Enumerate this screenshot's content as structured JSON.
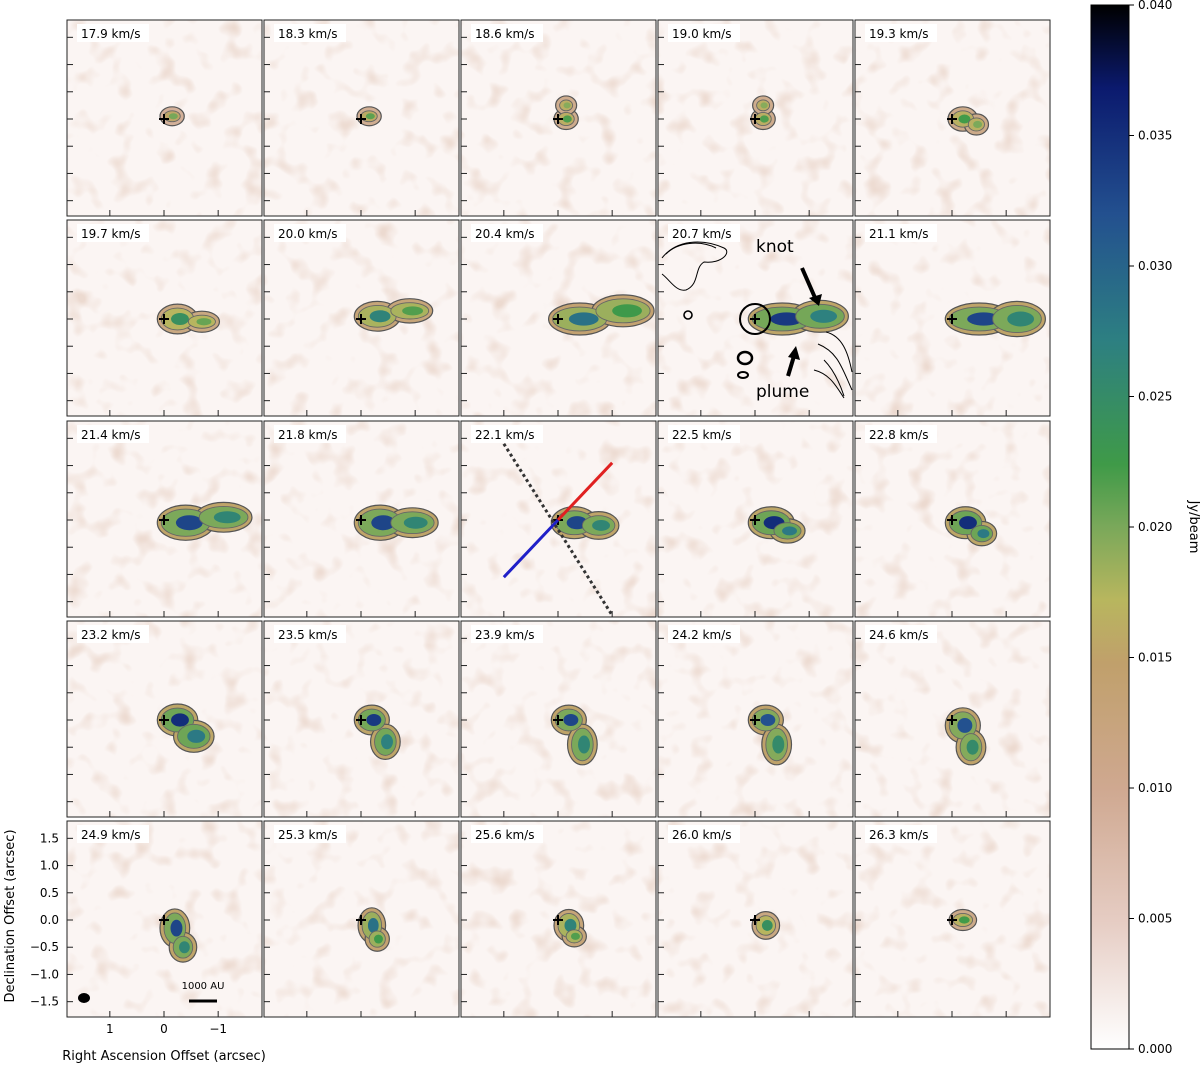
{
  "chart_data": {
    "type": "heatmap",
    "title": "",
    "panel_layout": "5 rows x 5 columns of channel maps",
    "panels": [
      {
        "label": "17.9 km/s",
        "peak": 0.018,
        "emission": [
          [
            -0.15,
            0.05,
            0.15,
            0.1
          ]
        ]
      },
      {
        "label": "18.3 km/s",
        "peak": 0.02,
        "emission": [
          [
            -0.15,
            0.05,
            0.15,
            0.1
          ]
        ]
      },
      {
        "label": "18.6 km/s",
        "peak": 0.021,
        "emission": [
          [
            -0.15,
            0.0,
            0.15,
            0.12
          ],
          [
            -0.15,
            0.25,
            0.12,
            0.1
          ]
        ]
      },
      {
        "label": "19.0 km/s",
        "peak": 0.021,
        "emission": [
          [
            -0.15,
            0.0,
            0.15,
            0.12
          ],
          [
            -0.15,
            0.25,
            0.12,
            0.1
          ]
        ]
      },
      {
        "label": "19.3 km/s",
        "peak": 0.022,
        "emission": [
          [
            -0.2,
            0.0,
            0.2,
            0.15
          ],
          [
            -0.45,
            -0.1,
            0.15,
            0.12
          ]
        ]
      },
      {
        "label": "19.7 km/s",
        "peak": 0.024,
        "emission": [
          [
            -0.25,
            0.0,
            0.3,
            0.2
          ],
          [
            -0.7,
            -0.05,
            0.25,
            0.12
          ]
        ]
      },
      {
        "label": "20.0 km/s",
        "peak": 0.026,
        "emission": [
          [
            -0.3,
            0.05,
            0.35,
            0.2
          ],
          [
            -0.9,
            0.15,
            0.35,
            0.15
          ]
        ]
      },
      {
        "label": "20.4 km/s",
        "peak": 0.028,
        "emission": [
          [
            -0.4,
            0.0,
            0.5,
            0.22
          ],
          [
            -1.2,
            0.15,
            0.5,
            0.22
          ]
        ]
      },
      {
        "label": "20.7 km/s",
        "peak": 0.033,
        "emission": [
          [
            -0.5,
            0.0,
            0.55,
            0.22
          ],
          [
            -1.2,
            0.05,
            0.45,
            0.22
          ]
        ]
      },
      {
        "label": "21.1 km/s",
        "peak": 0.032,
        "emission": [
          [
            -0.5,
            0.0,
            0.55,
            0.22
          ],
          [
            -1.2,
            0.0,
            0.45,
            0.25
          ]
        ]
      },
      {
        "label": "21.4 km/s",
        "peak": 0.032,
        "emission": [
          [
            -0.4,
            -0.05,
            0.45,
            0.25
          ],
          [
            -1.1,
            0.05,
            0.45,
            0.2
          ]
        ]
      },
      {
        "label": "21.8 km/s",
        "peak": 0.032,
        "emission": [
          [
            -0.35,
            -0.05,
            0.4,
            0.25
          ],
          [
            -0.95,
            -0.05,
            0.4,
            0.2
          ]
        ]
      },
      {
        "label": "22.1 km/s",
        "peak": 0.032,
        "emission": [
          [
            -0.3,
            -0.05,
            0.35,
            0.22
          ],
          [
            -0.75,
            -0.1,
            0.3,
            0.18
          ]
        ]
      },
      {
        "label": "22.5 km/s",
        "peak": 0.034,
        "emission": [
          [
            -0.3,
            -0.05,
            0.35,
            0.22
          ],
          [
            -0.6,
            -0.2,
            0.25,
            0.15
          ]
        ]
      },
      {
        "label": "22.8 km/s",
        "peak": 0.034,
        "emission": [
          [
            -0.25,
            -0.05,
            0.3,
            0.22
          ],
          [
            -0.55,
            -0.25,
            0.2,
            0.15
          ]
        ]
      },
      {
        "label": "23.2 km/s",
        "peak": 0.034,
        "emission": [
          [
            -0.25,
            0.0,
            0.3,
            0.22
          ],
          [
            -0.55,
            -0.3,
            0.3,
            0.22
          ]
        ]
      },
      {
        "label": "23.5 km/s",
        "peak": 0.033,
        "emission": [
          [
            -0.2,
            0.0,
            0.25,
            0.2
          ],
          [
            -0.45,
            -0.4,
            0.2,
            0.25
          ]
        ]
      },
      {
        "label": "23.9 km/s",
        "peak": 0.032,
        "emission": [
          [
            -0.2,
            0.0,
            0.25,
            0.2
          ],
          [
            -0.45,
            -0.45,
            0.2,
            0.3
          ]
        ]
      },
      {
        "label": "24.2 km/s",
        "peak": 0.031,
        "emission": [
          [
            -0.2,
            0.0,
            0.25,
            0.2
          ],
          [
            -0.4,
            -0.45,
            0.2,
            0.3
          ]
        ]
      },
      {
        "label": "24.6 km/s",
        "peak": 0.031,
        "emission": [
          [
            -0.2,
            -0.1,
            0.25,
            0.25
          ],
          [
            -0.35,
            -0.5,
            0.2,
            0.25
          ]
        ]
      },
      {
        "label": "24.9 km/s",
        "peak": 0.032,
        "emission": [
          [
            -0.2,
            -0.15,
            0.2,
            0.28
          ],
          [
            -0.35,
            -0.5,
            0.18,
            0.2
          ]
        ]
      },
      {
        "label": "25.3 km/s",
        "peak": 0.028,
        "emission": [
          [
            -0.2,
            -0.1,
            0.18,
            0.25
          ],
          [
            -0.3,
            -0.35,
            0.15,
            0.15
          ]
        ]
      },
      {
        "label": "25.6 km/s",
        "peak": 0.026,
        "emission": [
          [
            -0.2,
            -0.1,
            0.2,
            0.22
          ],
          [
            -0.3,
            -0.3,
            0.15,
            0.12
          ]
        ]
      },
      {
        "label": "26.0 km/s",
        "peak": 0.024,
        "emission": [
          [
            -0.2,
            -0.1,
            0.18,
            0.18
          ]
        ]
      },
      {
        "label": "26.3 km/s",
        "peak": 0.022,
        "emission": [
          [
            -0.2,
            0.0,
            0.18,
            0.12
          ]
        ]
      }
    ],
    "xlabel": "Right Ascension Offset (arcsec)",
    "ylabel": "Declination Offset (arcsec)",
    "xticks": [
      "1",
      "0",
      "−1"
    ],
    "yticks": [
      "1.5",
      "1.0",
      "0.5",
      "0.0",
      "−0.5",
      "−1.0",
      "−1.5"
    ],
    "xlim": [
      1.8,
      -1.8
    ],
    "ylim": [
      -1.8,
      1.8
    ],
    "colorbar": {
      "label": "Jy/beam",
      "range": [
        0.0,
        0.04
      ],
      "ticks": [
        "0.040",
        "0.035",
        "0.030",
        "0.025",
        "0.020",
        "0.015",
        "0.010",
        "0.005",
        "0.000"
      ],
      "colors": [
        "#ffffff",
        "#d8b4a6",
        "#c0a06b",
        "#b7b65f",
        "#7aa85a",
        "#3f9a48",
        "#2d7f82",
        "#23508f",
        "#0b1a6e",
        "#000000"
      ]
    },
    "annotations": {
      "knot_label": "knot",
      "plume_label": "plume",
      "scalebar_label": "1000 AU"
    },
    "overlay_lines": [
      {
        "color": "#e02020",
        "style": "solid",
        "from": [
          0.0,
          0.0
        ],
        "to": [
          -1.0,
          1.05
        ]
      },
      {
        "color": "#2020c8",
        "style": "solid",
        "from": [
          0.0,
          0.0
        ],
        "to": [
          1.0,
          -1.05
        ]
      },
      {
        "color": "#333333",
        "style": "dotted",
        "from": [
          1.0,
          1.4
        ],
        "to": [
          -1.0,
          -1.75
        ]
      }
    ]
  }
}
